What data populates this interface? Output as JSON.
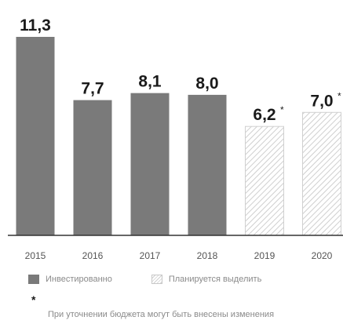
{
  "chart_data": {
    "type": "bar",
    "categories": [
      "2015",
      "2016",
      "2017",
      "2018",
      "2019",
      "2020"
    ],
    "values": [
      11.3,
      7.7,
      8.1,
      8.0,
      6.2,
      7.0
    ],
    "value_labels": [
      "11,3",
      "7,7",
      "8,1",
      "8,0",
      "6,2",
      "7,0"
    ],
    "status": [
      "invested",
      "invested",
      "invested",
      "invested",
      "planned",
      "planned"
    ],
    "asterisk": [
      false,
      false,
      false,
      false,
      true,
      true
    ],
    "title": "",
    "xlabel": "",
    "ylabel": "",
    "ylim": [
      0,
      11.3
    ],
    "grid": false,
    "legend_position": "bottom",
    "colors": {
      "invested": "#7a7a7a",
      "planned_hatch": "#cfcfcf",
      "baseline": "#333333"
    }
  },
  "legend": {
    "invested_label": "Инвестированно",
    "planned_label": "Планируется выделить"
  },
  "footnote": {
    "mark": "*",
    "text": "При уточнении бюджета могут быть внесены изменения"
  }
}
